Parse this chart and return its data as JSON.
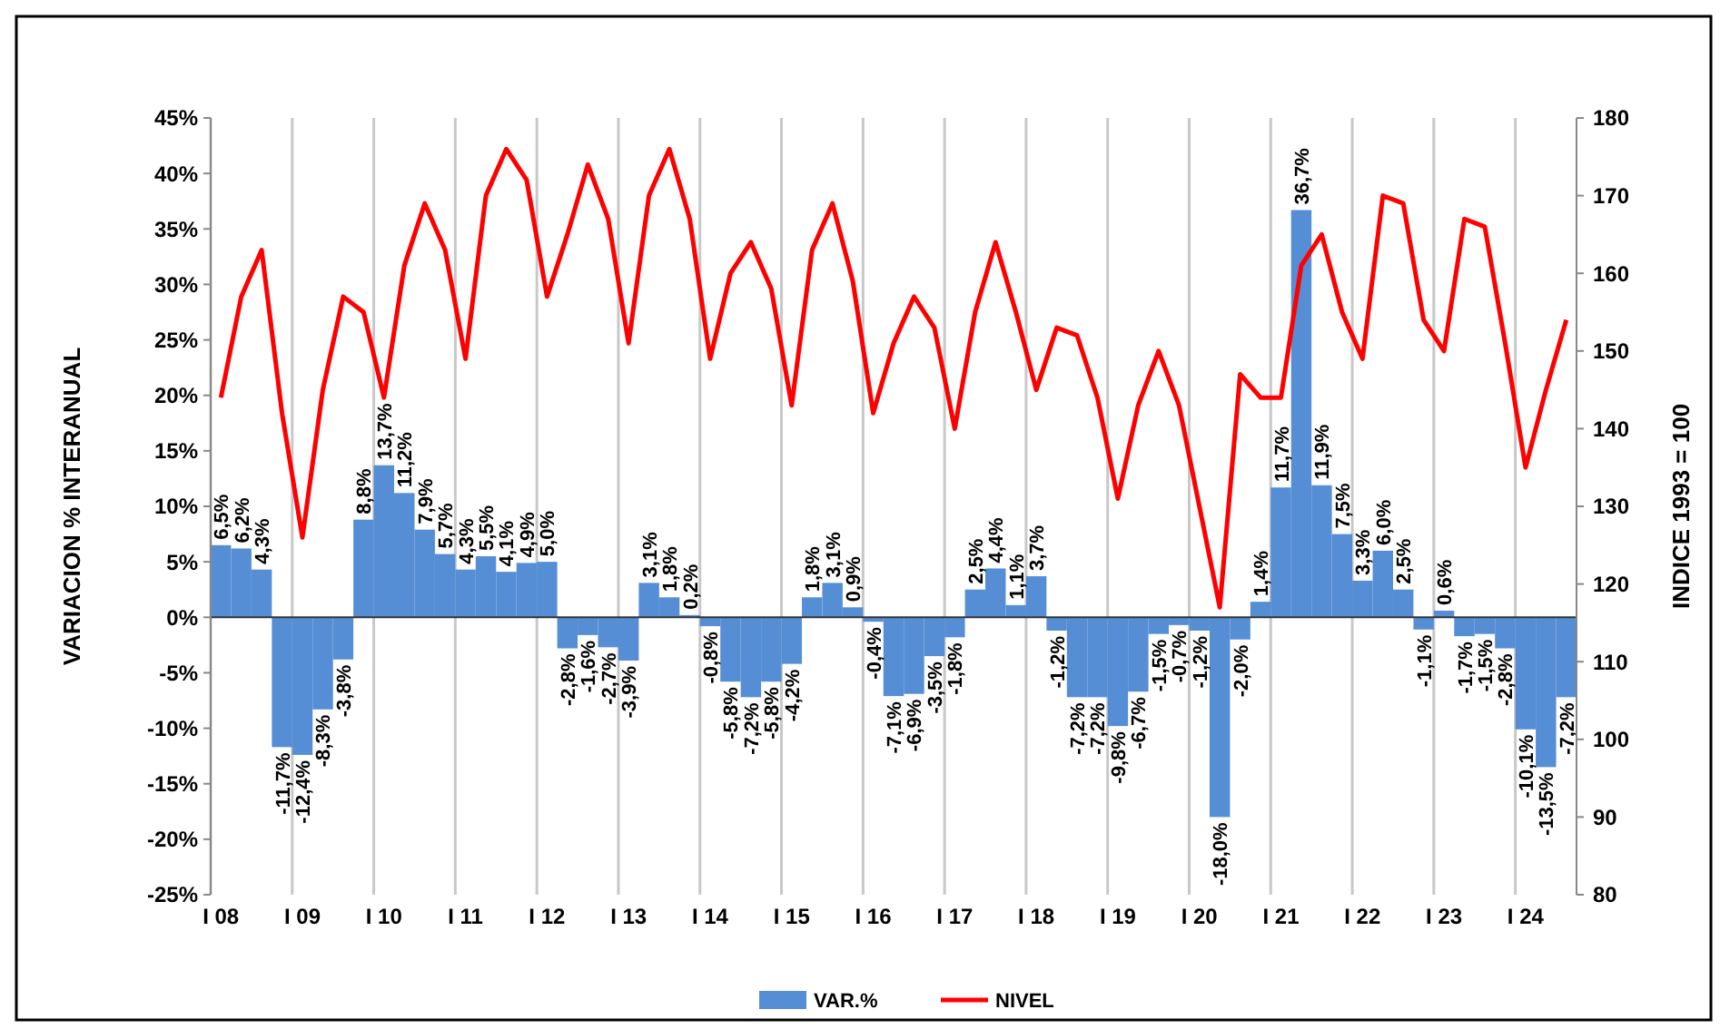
{
  "chart_data": {
    "type": "bar",
    "ylabel": "VARIACION % INTERANUAL",
    "y2label": "INDICE 1993 = 100",
    "categories": [
      "I 08",
      null,
      null,
      null,
      "I 09",
      null,
      null,
      null,
      "I 10",
      null,
      null,
      null,
      "I 11",
      null,
      null,
      null,
      "I 12",
      null,
      null,
      null,
      "I 13",
      null,
      null,
      null,
      "I 14",
      null,
      null,
      null,
      "I 15",
      null,
      null,
      null,
      "I 16",
      null,
      null,
      null,
      "I 17",
      null,
      null,
      null,
      "I 18",
      null,
      null,
      null,
      "I 19",
      null,
      null,
      null,
      "I 20",
      null,
      null,
      null,
      "I 21",
      null,
      null,
      null,
      "I 22",
      null,
      null,
      null,
      "I 23",
      null,
      null,
      null,
      "I 24",
      null,
      null
    ],
    "series": [
      {
        "name": "VAR.%",
        "color": "#558ed5",
        "values": [
          6.5,
          6.2,
          4.3,
          -11.7,
          -12.4,
          -8.3,
          -3.8,
          8.8,
          13.7,
          11.2,
          7.9,
          5.7,
          4.3,
          5.5,
          4.1,
          4.9,
          5.0,
          -2.8,
          -1.6,
          -2.7,
          -3.9,
          3.1,
          1.8,
          0.2,
          -0.8,
          -5.8,
          -7.2,
          -5.8,
          -4.2,
          1.8,
          3.1,
          0.9,
          -0.4,
          -7.1,
          -6.9,
          -3.5,
          -1.8,
          2.5,
          4.4,
          1.1,
          3.7,
          -1.2,
          -7.2,
          -7.2,
          -9.8,
          -6.7,
          -1.5,
          -0.7,
          -1.2,
          -18.0,
          -2.0,
          1.4,
          11.7,
          36.7,
          11.9,
          7.5,
          3.3,
          6.0,
          2.5,
          -1.1,
          0.6,
          -1.7,
          -1.5,
          -2.8,
          -10.1,
          -13.5,
          -7.2
        ],
        "value_labels": [
          "6,5%",
          "6,2%",
          "4,3%",
          "-11,7%",
          "-12,4%",
          "-8,3%",
          "-3,8%",
          "8,8%",
          "13,7%",
          "11,2%",
          "7,9%",
          "5,7%",
          "4,3%",
          "5,5%",
          "4,1%",
          "4,9%",
          "5,0%",
          "-2,8%",
          "-1,6%",
          "-2,7%",
          "-3,9%",
          "3,1%",
          "1,8%",
          "0,2%",
          "-0,8%",
          "-5,8%",
          "-7,2%",
          "-5,8%",
          "-4,2%",
          "1,8%",
          "3,1%",
          "0,9%",
          "-0,4%",
          "-7,1%",
          "-6,9%",
          "-3,5%",
          "-1,8%",
          "2,5%",
          "4,4%",
          "1,1%",
          "3,7%",
          "-1,2%",
          "-7,2%",
          "-7,2%",
          "-9,8%",
          "-6,7%",
          "-1,5%",
          "-0,7%",
          "-1,2%",
          "-18,0%",
          "-2,0%",
          "1,4%",
          "11,7%",
          "36,7%",
          "11,9%",
          "7,5%",
          "3,3%",
          "6,0%",
          "2,5%",
          "-1,1%",
          "0,6%",
          "-1,7%",
          "-1,5%",
          "-2,8%",
          "-10,1%",
          "-13,5%",
          "-7,2%"
        ]
      },
      {
        "name": "NIVEL",
        "type": "line",
        "axis": "y2",
        "color": "#ff0000",
        "values": [
          144,
          157,
          163,
          142,
          126,
          145,
          157,
          155,
          144,
          161,
          169,
          163,
          149,
          170,
          176,
          172,
          157,
          165,
          174,
          167,
          151,
          170,
          176,
          167,
          149,
          160,
          164,
          158,
          143,
          163,
          169,
          159,
          142,
          151,
          157,
          153,
          140,
          155,
          164,
          155,
          145,
          153,
          152,
          144,
          131,
          143,
          150,
          143,
          130,
          117,
          147,
          144,
          144,
          161,
          165,
          155,
          149,
          170,
          169,
          154,
          150,
          167,
          166,
          151,
          135,
          145,
          154
        ]
      }
    ],
    "ylim": [
      -25,
      45
    ],
    "yticks": [
      {
        "value": -25,
        "label": "-25%"
      },
      {
        "value": -20,
        "label": "-20%"
      },
      {
        "value": -15,
        "label": "-15%"
      },
      {
        "value": -10,
        "label": "-10%"
      },
      {
        "value": -5,
        "label": "-5%"
      },
      {
        "value": 0,
        "label": "0%"
      },
      {
        "value": 5,
        "label": "5%"
      },
      {
        "value": 10,
        "label": "10%"
      },
      {
        "value": 15,
        "label": "15%"
      },
      {
        "value": 20,
        "label": "20%"
      },
      {
        "value": 25,
        "label": "25%"
      },
      {
        "value": 30,
        "label": "30%"
      },
      {
        "value": 35,
        "label": "35%"
      },
      {
        "value": 40,
        "label": "40%"
      },
      {
        "value": 45,
        "label": "45%"
      }
    ],
    "y2lim": [
      80,
      180
    ],
    "y2ticks": [
      80,
      90,
      100,
      110,
      120,
      130,
      140,
      150,
      160,
      170,
      180
    ],
    "grid": "x",
    "legend": "bottom"
  }
}
